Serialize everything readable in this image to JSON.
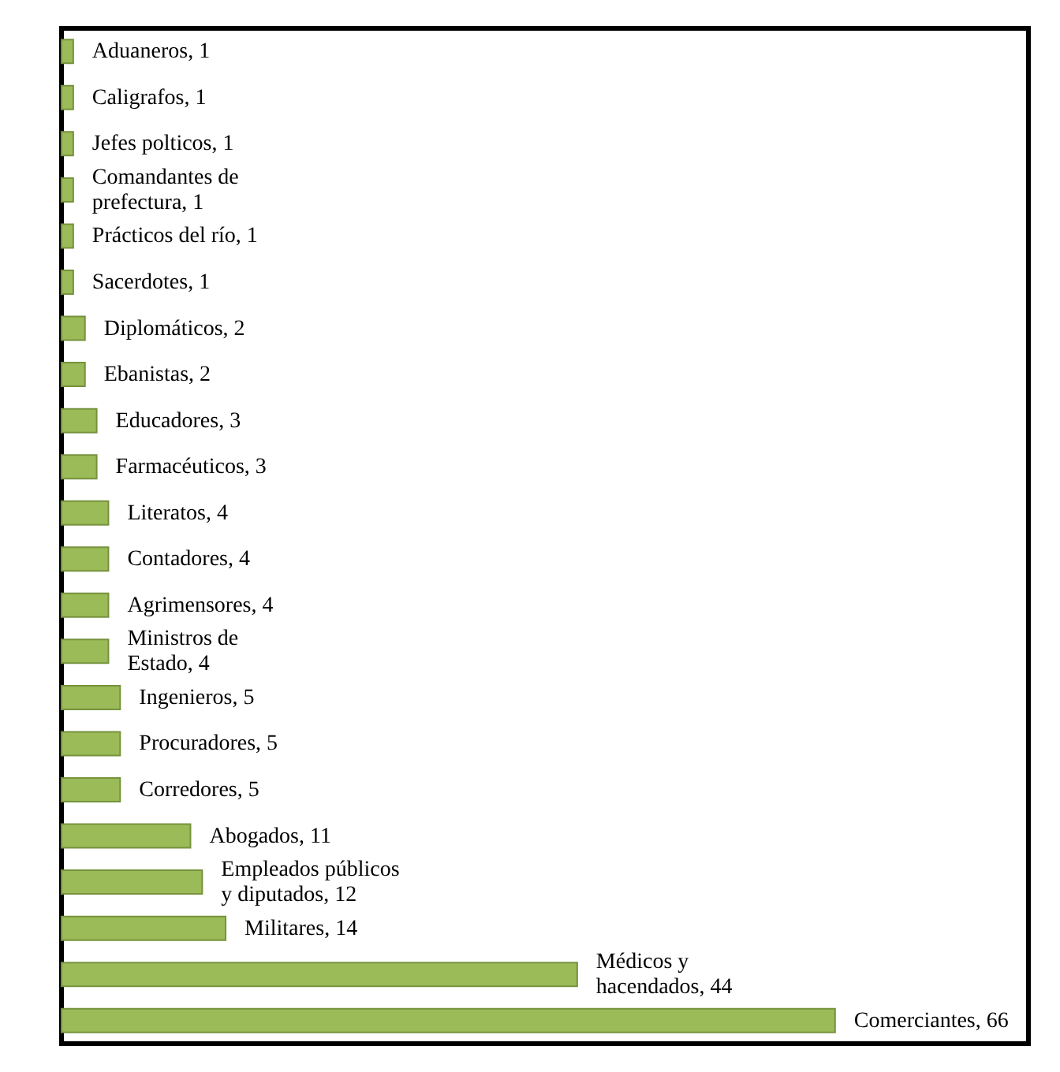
{
  "chart_data": {
    "type": "bar",
    "orientation": "horizontal",
    "categories": [
      null,
      null,
      null,
      null,
      null,
      null,
      null,
      null,
      null,
      null,
      null,
      null,
      null,
      null,
      null,
      null,
      null,
      null,
      null,
      null,
      null,
      null
    ],
    "values": [
      1,
      1,
      1,
      1,
      1,
      1,
      2,
      2,
      3,
      3,
      4,
      4,
      4,
      4,
      5,
      5,
      5,
      11,
      12,
      14,
      44,
      66
    ],
    "value_labels": [
      "Aduaneros, 1",
      "Caligrafos, 1",
      "Jefes polticos, 1",
      "Comandantes de\nprefectura, 1",
      "Prácticos del río, 1",
      "Sacerdotes, 1",
      "Diplomáticos, 2",
      "Ebanistas, 2",
      "Educadores, 3",
      "Farmacéuticos, 3",
      "Literatos, 4",
      "Contadores, 4",
      "Agrimensores, 4",
      "Ministros de\nEstado, 4",
      "Ingenieros, 5",
      "Procuradores, 5",
      "Corredores, 5",
      "Abogados, 11",
      "Empleados públicos\ny diputados, 12",
      "Militares, 14",
      "Médicos y\nhacendados, 44",
      "Comerciantes, 66"
    ],
    "color": "#9bbb59"
  }
}
